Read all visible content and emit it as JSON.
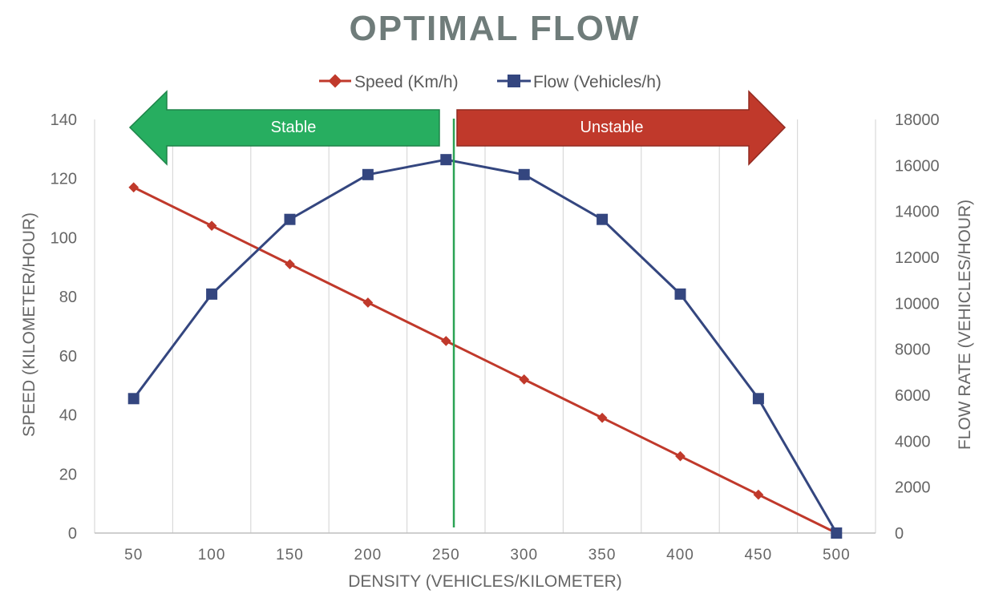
{
  "chart_data": {
    "type": "line",
    "title": "OPTIMAL FLOW",
    "xlabel": "DENSITY (VEHICLES/KILOMETER)",
    "ylabel_left": "SPEED (KILOMETER/HOUR)",
    "ylabel_right": "FLOW RATE (VEHICLES/HOUR)",
    "x": [
      50,
      100,
      150,
      200,
      250,
      300,
      350,
      400,
      450,
      500
    ],
    "x_ticks": [
      "50",
      "100",
      "150",
      "200",
      "250",
      "300",
      "350",
      "400",
      "450",
      "500"
    ],
    "ylim_left": [
      0,
      140
    ],
    "y_ticks_left": [
      "0",
      "20",
      "40",
      "60",
      "80",
      "100",
      "120",
      "140"
    ],
    "ylim_right": [
      0,
      18000
    ],
    "y_ticks_right": [
      "0",
      "2000",
      "4000",
      "6000",
      "8000",
      "10000",
      "12000",
      "14000",
      "16000",
      "18000"
    ],
    "grid": "vertical",
    "legend_position": "top",
    "series": [
      {
        "name": "Speed (Km/h)",
        "axis": "left",
        "marker": "diamond",
        "color": "#c0392b",
        "values": [
          117,
          104,
          91,
          78,
          65,
          52,
          39,
          26,
          13,
          0
        ]
      },
      {
        "name": "Flow (Vehicles/h)",
        "axis": "right",
        "marker": "square",
        "color": "#34467f",
        "values": [
          5850,
          10400,
          13650,
          15600,
          16250,
          15600,
          13650,
          10400,
          5850,
          0
        ]
      }
    ],
    "annotations": {
      "optimal_line_x": 255,
      "optimal_line_color": "#2ba354",
      "left_arrow": {
        "label": "Stable",
        "color": "#27ae60"
      },
      "right_arrow": {
        "label": "Unstable",
        "color": "#c0392b"
      }
    }
  }
}
